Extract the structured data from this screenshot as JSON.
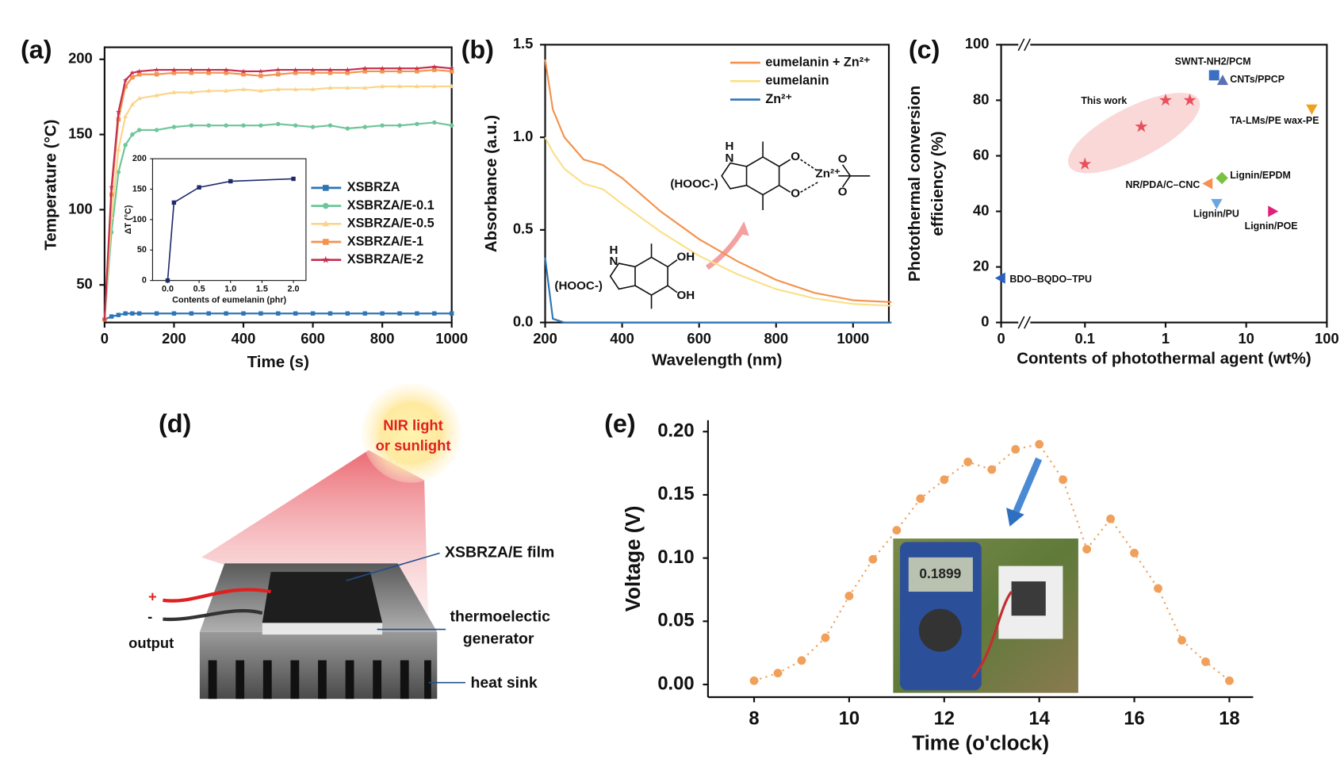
{
  "chart_data": [
    {
      "type": "line",
      "panel": "(a)",
      "xlabel": "Time (s)",
      "ylabel": "Temperature (°C)",
      "box": true,
      "x": [
        0,
        20,
        40,
        60,
        80,
        100,
        150,
        200,
        250,
        300,
        350,
        400,
        450,
        500,
        550,
        600,
        650,
        700,
        750,
        800,
        850,
        900,
        950,
        1000
      ],
      "xlim": [
        0,
        1000
      ],
      "xticks": [
        0,
        200,
        400,
        600,
        800,
        1000
      ],
      "ylim": [
        25,
        208
      ],
      "yticks": [
        50,
        100,
        150,
        200
      ],
      "legend": "right",
      "series": [
        {
          "name": "XSBRZA",
          "color": "#2e75b6",
          "marker": "square",
          "values": [
            27,
            29,
            30,
            31,
            31,
            31,
            31,
            31,
            31,
            31,
            31,
            31,
            31,
            31,
            31,
            31,
            31,
            31,
            31,
            31,
            31,
            31,
            31,
            31
          ]
        },
        {
          "name": "XSBRZA/E-0.1",
          "color": "#6fc59a",
          "marker": "circle",
          "values": [
            27,
            85,
            125,
            143,
            150,
            153,
            153,
            155,
            156,
            156,
            156,
            156,
            156,
            157,
            156,
            155,
            156,
            154,
            155,
            156,
            156,
            157,
            158,
            156
          ]
        },
        {
          "name": "XSBRZA/E-0.5",
          "color": "#fbd48a",
          "marker": "triangle-up",
          "values": [
            27,
            95,
            140,
            162,
            170,
            174,
            176,
            178,
            178,
            179,
            179,
            180,
            179,
            180,
            180,
            180,
            181,
            181,
            181,
            182,
            182,
            182,
            182,
            182
          ]
        },
        {
          "name": "XSBRZA/E-1",
          "color": "#f4924e",
          "marker": "square",
          "values": [
            27,
            110,
            160,
            182,
            188,
            190,
            190,
            191,
            191,
            191,
            191,
            190,
            189,
            190,
            191,
            191,
            191,
            191,
            192,
            192,
            192,
            192,
            193,
            192
          ]
        },
        {
          "name": "XSBRZA/E-2",
          "color": "#c42e50",
          "marker": "star",
          "values": [
            27,
            115,
            165,
            186,
            191,
            192,
            193,
            193,
            193,
            193,
            193,
            192,
            192,
            193,
            193,
            193,
            193,
            193,
            194,
            194,
            194,
            194,
            195,
            194
          ]
        }
      ]
    },
    {
      "type": "line",
      "xlabel": "Contents of eumelanin (phr)",
      "ylabel": "ΔT (°C)",
      "box": true,
      "x": [
        0,
        0.1,
        0.5,
        1,
        2
      ],
      "xlim": [
        -0.24,
        2.2
      ],
      "xticks": [
        {
          "value": 0,
          "label": "0.0"
        },
        {
          "value": 0.5,
          "label": "0.5"
        },
        {
          "value": 1,
          "label": "1.0"
        },
        {
          "value": 1.5,
          "label": "1.5"
        },
        {
          "value": 2,
          "label": "2.0"
        }
      ],
      "ylim": [
        0,
        200
      ],
      "yticks": [
        0,
        50,
        100,
        150,
        200
      ],
      "series": [
        {
          "color": "#1f2a6b",
          "marker": "square",
          "values": [
            0,
            128,
            153,
            163,
            167
          ]
        }
      ]
    },
    {
      "type": "line",
      "panel": "(b)",
      "xlabel": "Wavelength (nm)",
      "ylabel": "Absorbance (a.u.)",
      "box": true,
      "x": [
        200,
        220,
        250,
        300,
        350,
        400,
        500,
        600,
        700,
        800,
        900,
        1000,
        1100
      ],
      "xlim": [
        200,
        1093
      ],
      "xticks": [
        200,
        400,
        600,
        800,
        1000
      ],
      "ylim": [
        0,
        1.5
      ],
      "yticks": [
        {
          "value": 0,
          "label": "0.0"
        },
        {
          "value": 0.5,
          "label": "0.5"
        },
        {
          "value": 1,
          "label": "1.0"
        },
        {
          "value": 1.5,
          "label": "1.5"
        }
      ],
      "legend": "upper right",
      "series": [
        {
          "name": "eumelanin + Zn²⁺",
          "color": "#f4924e",
          "values": [
            1.42,
            1.15,
            1.0,
            0.88,
            0.85,
            0.78,
            0.6,
            0.45,
            0.33,
            0.23,
            0.16,
            0.12,
            0.11
          ]
        },
        {
          "name": "eumelanin",
          "color": "#fbe08a",
          "values": [
            1.0,
            0.92,
            0.83,
            0.75,
            0.72,
            0.64,
            0.49,
            0.36,
            0.26,
            0.18,
            0.13,
            0.1,
            0.09
          ]
        },
        {
          "name": "Zn²⁺",
          "color": "#2e75b6",
          "values": [
            0.35,
            0.02,
            0,
            0,
            0,
            0,
            0,
            0,
            0,
            0,
            0,
            0,
            0
          ]
        }
      ],
      "structures": [
        [
          "H",
          "N",
          "(HOOC-)",
          "O",
          "O",
          "Zn²⁺",
          "O",
          "O"
        ],
        [
          "H",
          "N",
          "(HOOC-)",
          "OH",
          "OH"
        ]
      ]
    },
    {
      "type": "scatter",
      "panel": "(c)",
      "xlabel": "Contents of photothermal agent (wt%)",
      "ylabel": [
        "Photothermal conversion",
        "efficiency (%)"
      ],
      "box": true,
      "xscale": "log",
      "x_break": true,
      "xlim": [
        0.02,
        100
      ],
      "xticks": [
        0,
        0.1,
        1,
        10,
        100
      ],
      "ylim": [
        0,
        100
      ],
      "yticks": [
        0,
        20,
        40,
        60,
        80,
        100
      ],
      "series": [
        {
          "name": "This work",
          "color": "#e8505b",
          "marker": "star",
          "x": [
            0.1,
            0.5,
            1,
            2
          ],
          "values": [
            57,
            70.5,
            80,
            80
          ]
        },
        {
          "name": "SWNT-NH2/PCM",
          "color": "#3a6fc4",
          "marker": "square",
          "x": [
            4
          ],
          "values": [
            89
          ]
        },
        {
          "name": "CNTs/PPCP",
          "color": "#5b6fb5",
          "marker": "triangle-up",
          "x": [
            5.1
          ],
          "values": [
            87
          ]
        },
        {
          "name": "TA-LMs/PE wax-PE",
          "color": "#f0a020",
          "marker": "triangle-down",
          "x": [
            65
          ],
          "values": [
            77
          ]
        },
        {
          "name": "Lignin/EPDM",
          "color": "#7ac142",
          "marker": "diamond",
          "x": [
            5
          ],
          "values": [
            52
          ]
        },
        {
          "name": "NR/PDA/C–CNC",
          "color": "#f4924e",
          "marker": "triangle-left",
          "x": [
            3.4
          ],
          "values": [
            50
          ]
        },
        {
          "name": "Lignin/PU",
          "color": "#6aa6e0",
          "marker": "triangle-down",
          "x": [
            4.3
          ],
          "values": [
            43
          ]
        },
        {
          "name": "Lignin/POE",
          "color": "#e0207a",
          "marker": "triangle-right",
          "x": [
            21
          ],
          "values": [
            40
          ]
        },
        {
          "name": "BDO–BQDO–TPU",
          "color": "#2a5fc0",
          "marker": "triangle-left",
          "x": [
            0
          ],
          "values": [
            16
          ]
        }
      ]
    },
    {
      "type": "line",
      "panel": "(e)",
      "xlabel": "Time (o'clock)",
      "ylabel": "Voltage (V)",
      "box": false,
      "line_style": "dotted",
      "x": [
        8,
        8.5,
        9,
        9.5,
        10,
        10.5,
        11,
        11.5,
        12,
        12.5,
        13,
        13.5,
        14,
        14.5,
        15,
        15.5,
        16,
        16.5,
        17,
        17.5,
        18
      ],
      "xlim": [
        7.03,
        18.5
      ],
      "xticks": [
        8,
        10,
        12,
        14,
        16,
        18
      ],
      "ylim": [
        -0.01,
        0.209
      ],
      "yticks": [
        {
          "value": 0,
          "label": "0.00"
        },
        {
          "value": 0.05,
          "label": "0.05"
        },
        {
          "value": 0.1,
          "label": "0.10"
        },
        {
          "value": 0.15,
          "label": "0.15"
        },
        {
          "value": 0.2,
          "label": "0.20"
        }
      ],
      "series": [
        {
          "color": "#f0a05a",
          "marker": "circle",
          "values": [
            0.003,
            0.009,
            0.019,
            0.037,
            0.07,
            0.099,
            0.122,
            0.147,
            0.162,
            0.176,
            0.17,
            0.186,
            0.19,
            0.162,
            0.107,
            0.131,
            0.104,
            0.076,
            0.035,
            0.018,
            0.003
          ]
        }
      ],
      "photo_text": "0.1899"
    }
  ],
  "diagram": {
    "panel": "(d)",
    "light": [
      "NIR light",
      "or sunlight"
    ],
    "film": "XSBRZA/E film",
    "teg": [
      "thermoelectic",
      "generator"
    ],
    "sink": "heat sink",
    "output": "output",
    "plus": "+",
    "minus": "-"
  }
}
